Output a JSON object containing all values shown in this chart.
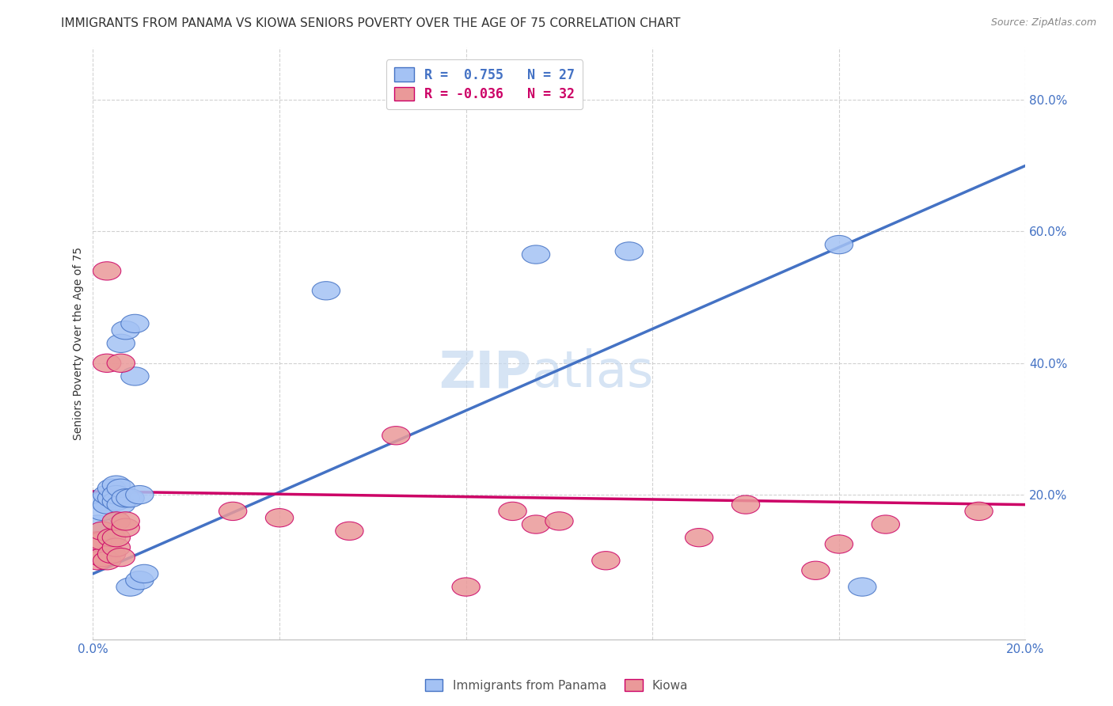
{
  "title": "IMMIGRANTS FROM PANAMA VS KIOWA SENIORS POVERTY OVER THE AGE OF 75 CORRELATION CHART",
  "source": "Source: ZipAtlas.com",
  "ylabel_label": "Seniors Poverty Over the Age of 75",
  "xlim": [
    0.0,
    0.2
  ],
  "ylim": [
    -0.02,
    0.88
  ],
  "xticks": [
    0.0,
    0.04,
    0.08,
    0.12,
    0.16,
    0.2
  ],
  "yticks": [
    0.2,
    0.4,
    0.6,
    0.8
  ],
  "xtick_labels": [
    "0.0%",
    "",
    "",
    "",
    "",
    "20.0%"
  ],
  "blue_scatter_x": [
    0.001,
    0.002,
    0.002,
    0.003,
    0.003,
    0.004,
    0.004,
    0.005,
    0.005,
    0.005,
    0.006,
    0.006,
    0.006,
    0.007,
    0.007,
    0.008,
    0.008,
    0.009,
    0.009,
    0.01,
    0.01,
    0.011,
    0.05,
    0.095,
    0.115,
    0.16,
    0.165
  ],
  "blue_scatter_y": [
    0.155,
    0.19,
    0.175,
    0.185,
    0.2,
    0.195,
    0.21,
    0.19,
    0.215,
    0.2,
    0.185,
    0.21,
    0.43,
    0.45,
    0.195,
    0.195,
    0.06,
    0.46,
    0.38,
    0.2,
    0.07,
    0.08,
    0.51,
    0.565,
    0.57,
    0.58,
    0.06
  ],
  "pink_scatter_x": [
    0.001,
    0.001,
    0.002,
    0.002,
    0.002,
    0.003,
    0.003,
    0.003,
    0.004,
    0.004,
    0.005,
    0.005,
    0.005,
    0.006,
    0.006,
    0.007,
    0.007,
    0.03,
    0.04,
    0.055,
    0.065,
    0.08,
    0.09,
    0.095,
    0.1,
    0.11,
    0.13,
    0.14,
    0.155,
    0.16,
    0.17,
    0.19
  ],
  "pink_scatter_y": [
    0.1,
    0.13,
    0.105,
    0.13,
    0.145,
    0.1,
    0.4,
    0.54,
    0.11,
    0.135,
    0.12,
    0.135,
    0.16,
    0.105,
    0.4,
    0.15,
    0.16,
    0.175,
    0.165,
    0.145,
    0.29,
    0.06,
    0.175,
    0.155,
    0.16,
    0.1,
    0.135,
    0.185,
    0.085,
    0.125,
    0.155,
    0.175
  ],
  "blue_line_x": [
    0.0,
    0.2
  ],
  "blue_line_y": [
    0.08,
    0.7
  ],
  "pink_line_x": [
    0.0,
    0.2
  ],
  "pink_line_y": [
    0.205,
    0.185
  ],
  "blue_color": "#4472c4",
  "blue_scatter_color": "#a4c2f4",
  "pink_color": "#cc0066",
  "pink_scatter_color": "#ea9999",
  "background_color": "#ffffff",
  "grid_color": "#cccccc",
  "title_fontsize": 11,
  "axis_label_fontsize": 10,
  "tick_fontsize": 11,
  "watermark": "ZIPatlas",
  "watermark_zip": "ZIP",
  "watermark_atlas": "atlas"
}
